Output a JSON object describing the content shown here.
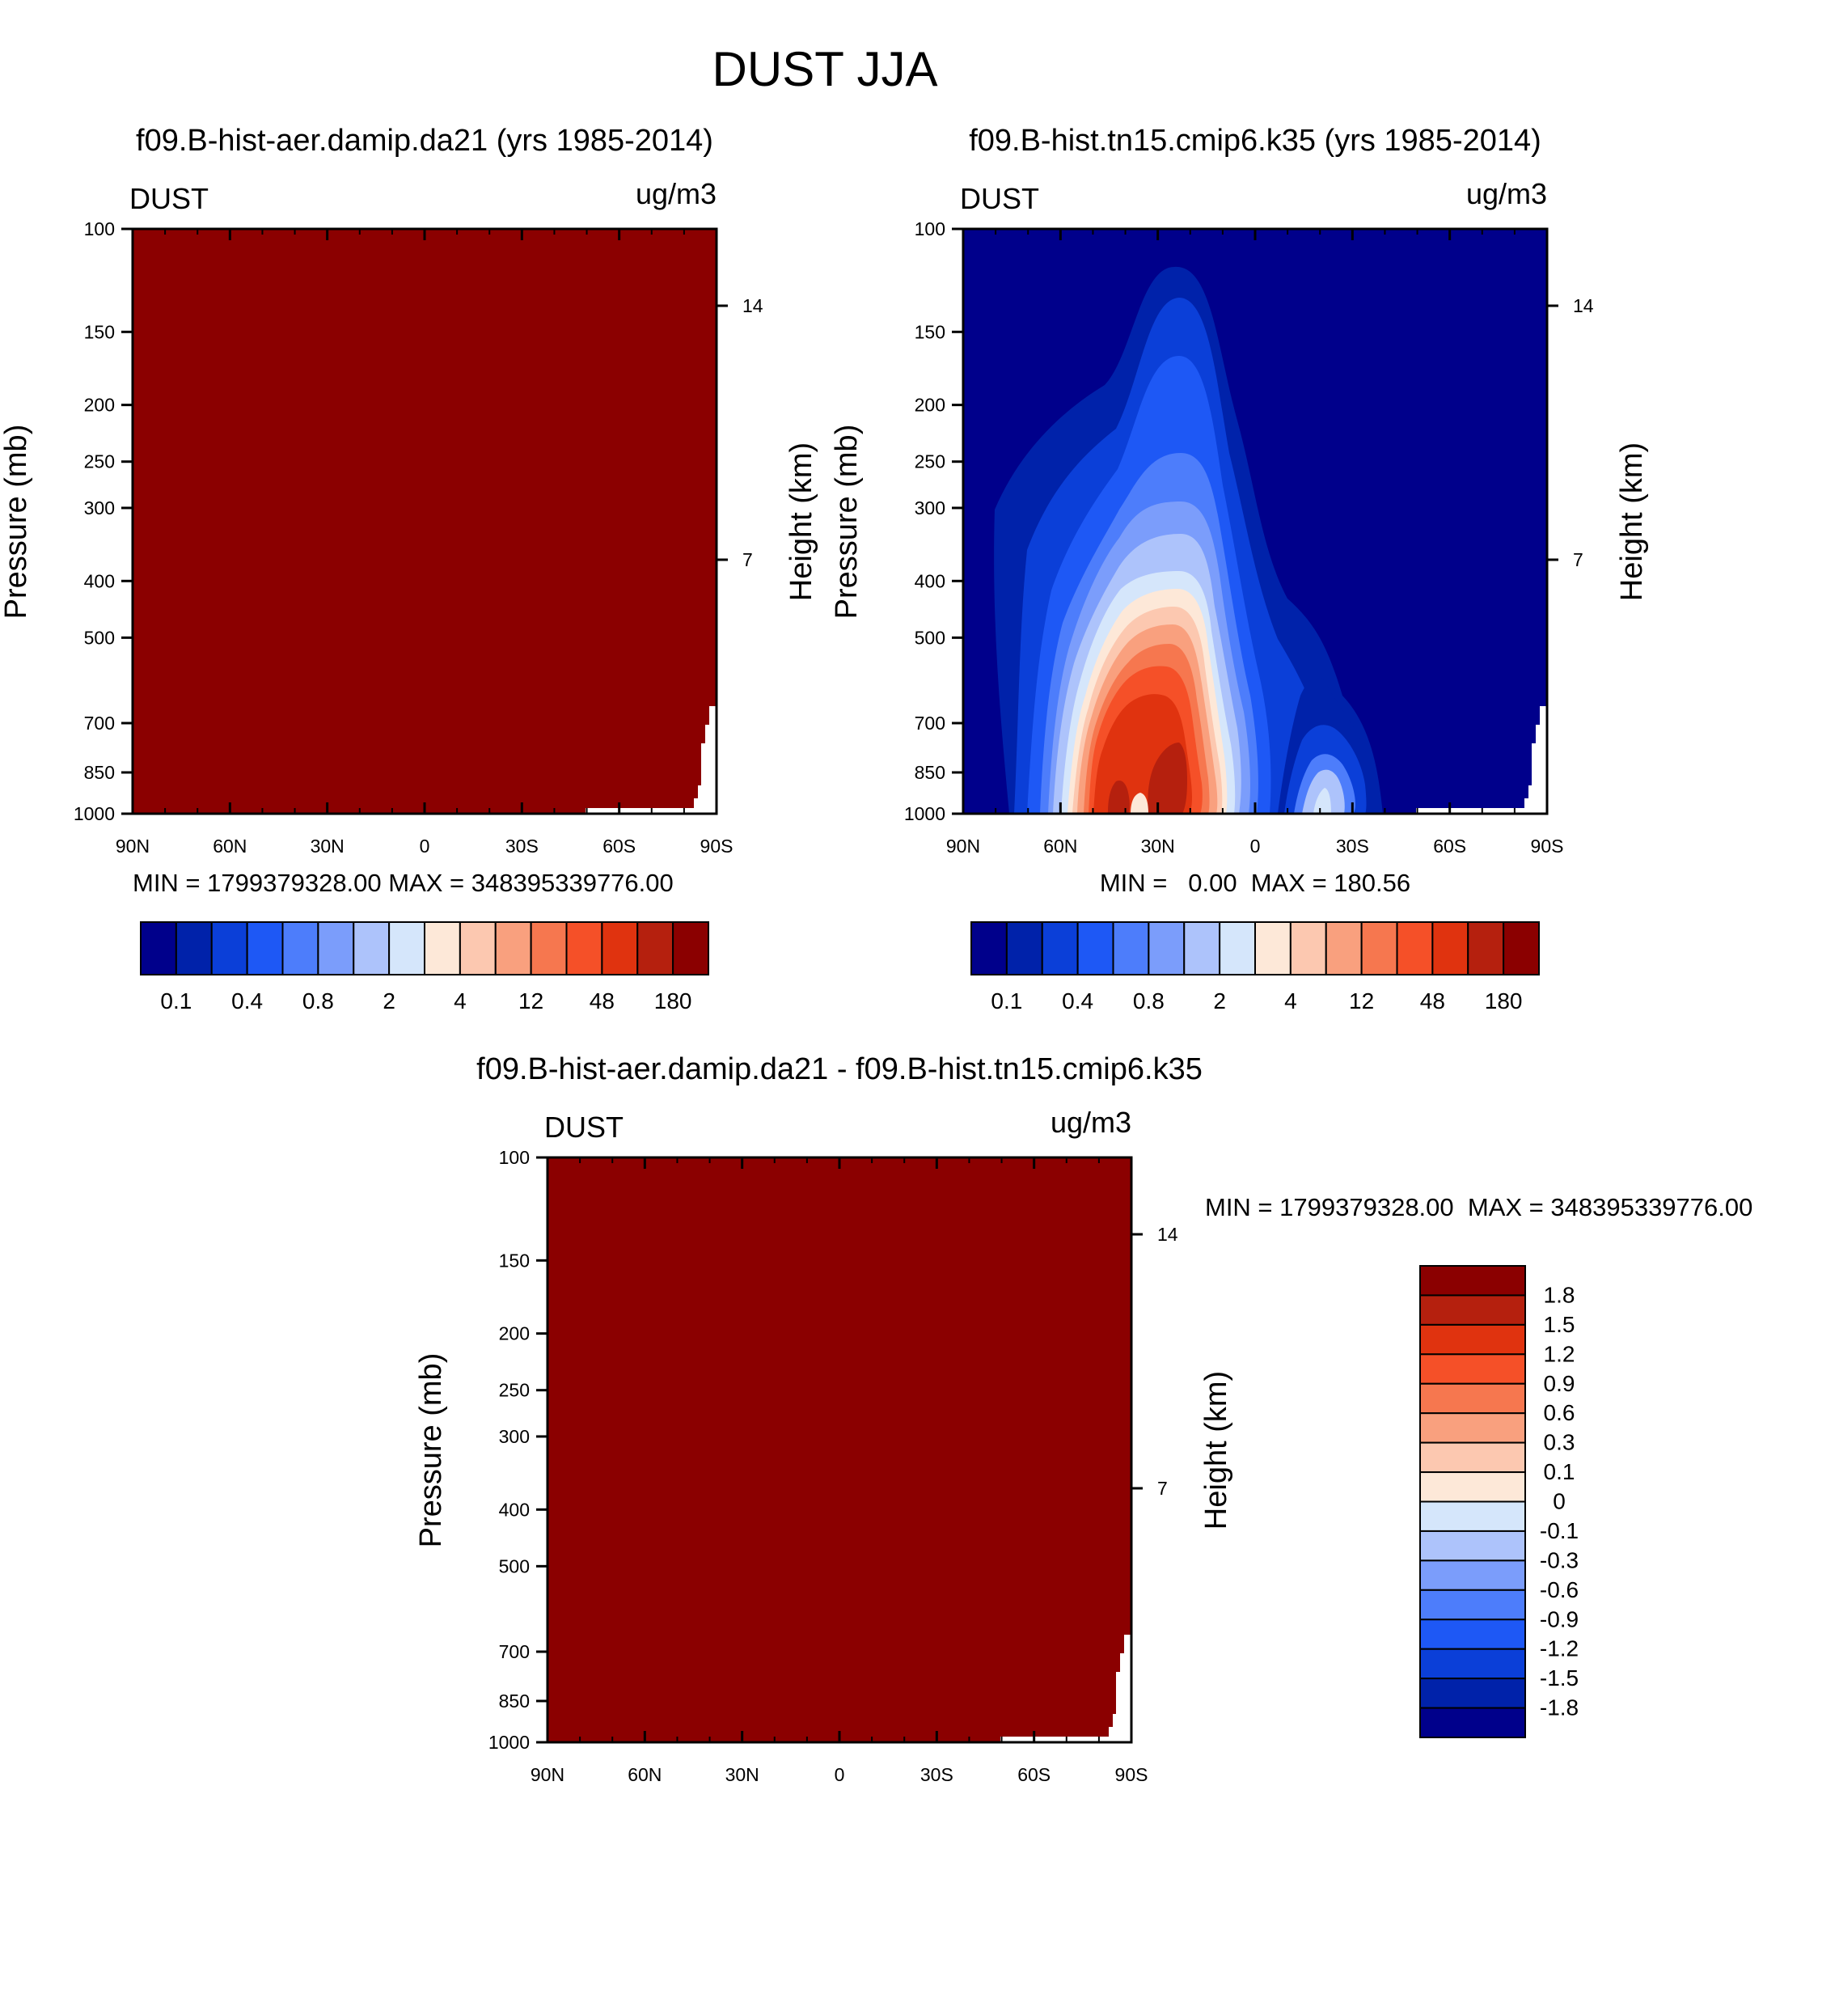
{
  "figure_title": "DUST JJA",
  "colors": [
    "#00008b",
    "#0022aa",
    "#0b3fd8",
    "#1e58f5",
    "#4d7dfb",
    "#7b9dfb",
    "#adc3fb",
    "#d5e6fb",
    "#fde8d8",
    "#fcc8b0",
    "#f9a07e",
    "#f6774f",
    "#f55028",
    "#e0330f",
    "#b5200e",
    "#8b0000"
  ],
  "chart_data": [
    {
      "type": "heatmap",
      "title": "f09.B-hist-aer.damip.da21 (yrs 1985-2014)",
      "variable": "DUST",
      "units": "ug/m3",
      "xlabel": "",
      "ylabel": "Pressure (mb)",
      "ylabel_right": "Height (km)",
      "x_ticks": [
        "90N",
        "60N",
        "30N",
        "0",
        "30S",
        "60S",
        "90S"
      ],
      "y_ticks": [
        "100",
        "150",
        "200",
        "250",
        "300",
        "400",
        "500",
        "700",
        "850",
        "1000"
      ],
      "y_right_ticks": [
        "14",
        "7"
      ],
      "ylim": [
        1000,
        100
      ],
      "stats": "MIN = 1799379328.00  MAX = 348395339776.00",
      "levels": [
        "0.1",
        "0.4",
        "0.8",
        "2",
        "4",
        "12",
        "48",
        "180"
      ],
      "field_note": "uniform maximum value over the whole domain"
    },
    {
      "type": "heatmap",
      "title": "f09.B-hist.tn15.cmip6.k35 (yrs 1985-2014)",
      "variable": "DUST",
      "units": "ug/m3",
      "xlabel": "",
      "ylabel": "Pressure (mb)",
      "ylabel_right": "Height (km)",
      "x_ticks": [
        "90N",
        "60N",
        "30N",
        "0",
        "30S",
        "60S",
        "90S"
      ],
      "y_ticks": [
        "100",
        "150",
        "200",
        "250",
        "300",
        "400",
        "500",
        "700",
        "850",
        "1000"
      ],
      "y_right_ticks": [
        "14",
        "7"
      ],
      "ylim": [
        1000,
        100
      ],
      "stats": "MIN =   0.00  MAX = 180.56",
      "levels": [
        "0.1",
        "0.4",
        "0.8",
        "2",
        "4",
        "12",
        "48",
        "180"
      ],
      "field_note": "dust plume centred near 20N extending to about 120 mb, secondary plume near 25S below 700 mb"
    },
    {
      "type": "heatmap",
      "title": "f09.B-hist-aer.damip.da21 - f09.B-hist.tn15.cmip6.k35",
      "variable": "DUST",
      "units": "ug/m3",
      "xlabel": "",
      "ylabel": "Pressure (mb)",
      "ylabel_right": "Height (km)",
      "x_ticks": [
        "90N",
        "60N",
        "30N",
        "0",
        "30S",
        "60S",
        "90S"
      ],
      "y_ticks": [
        "100",
        "150",
        "200",
        "250",
        "300",
        "400",
        "500",
        "700",
        "850",
        "1000"
      ],
      "y_right_ticks": [
        "14",
        "7"
      ],
      "ylim": [
        1000,
        100
      ],
      "stats": "MIN = 1799379328.00  MAX = 348395339776.00",
      "levels": [
        "1.8",
        "1.5",
        "1.2",
        "0.9",
        "0.6",
        "0.3",
        "0.1",
        "0",
        "-0.1",
        "-0.3",
        "-0.6",
        "-0.9",
        "-1.2",
        "-1.5",
        "-1.8"
      ],
      "field_note": "uniform maximum value over the whole domain"
    }
  ]
}
